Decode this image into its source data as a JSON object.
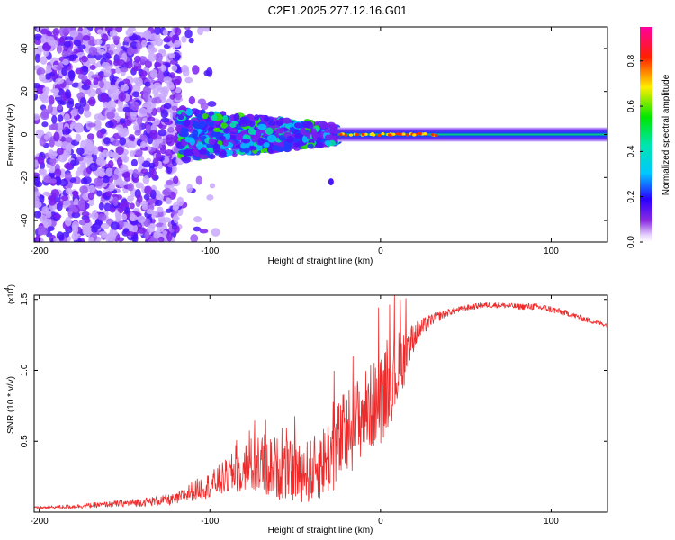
{
  "figure": {
    "title": "C2E1.2025.277.12.16.G01"
  },
  "chart_data": [
    {
      "type": "heatmap",
      "title": "C2E1.2025.277.12.16.G01",
      "xlabel": "Height of straight line (km)",
      "ylabel": "Frequency (Hz)",
      "xlim": [
        -203,
        133
      ],
      "ylim": [
        -50,
        50
      ],
      "x_ticks": [
        -200,
        -100,
        0,
        100
      ],
      "x_tick_labels": [
        "-200",
        "-100",
        "0",
        "100"
      ],
      "y_ticks": [
        -40,
        -20,
        0,
        20,
        40
      ],
      "y_tick_labels": [
        "-40",
        "-20",
        "0",
        "20",
        "40"
      ],
      "colorbar": {
        "label": "Normalized spectral amplitude",
        "range": [
          0,
          0.95
        ],
        "ticks": [
          0,
          0.2,
          0.4,
          0.6,
          0.8
        ],
        "tick_labels": [
          "0.0",
          "0.2",
          "0.4",
          "0.6",
          "0.8"
        ],
        "colormap": "rainbow (white-violet-blue-cyan-green-yellow-red-magenta)"
      },
      "description_series": [
        {
          "name": "scattered noise region",
          "x_range": [
            -203,
            -118
          ],
          "frequency_range": [
            -50,
            50
          ],
          "amplitude": 0.05
        },
        {
          "name": "converging band",
          "x_range": [
            -118,
            -25
          ],
          "frequency_range": [
            -10,
            12
          ],
          "amplitude": 0.2
        },
        {
          "name": "narrow carrier line",
          "x_range": [
            -25,
            133
          ],
          "frequency_center": 0,
          "amplitude_peak": 0.9
        }
      ]
    },
    {
      "type": "line",
      "xlabel": "Height of straight line (km)",
      "ylabel": "SNR (10 * v/v)",
      "yscale_label": "(x10",
      "yscale_exponent": "4",
      "xlim": [
        -203,
        133
      ],
      "ylim": [
        0,
        15300
      ],
      "x_ticks": [
        -200,
        -100,
        0,
        100
      ],
      "x_tick_labels": [
        "-200",
        "-100",
        "0",
        "100"
      ],
      "y_ticks": [
        5000,
        10000,
        15000
      ],
      "y_tick_labels": [
        "0.5",
        "1.0",
        "1.5"
      ],
      "color": "#ee2a2a",
      "series": [
        {
          "name": "SNR",
          "x": [
            -203,
            -180,
            -160,
            -140,
            -120,
            -110,
            -100,
            -90,
            -80,
            -70,
            -60,
            -50,
            -40,
            -30,
            -20,
            -10,
            0,
            10,
            20,
            30,
            40,
            50,
            60,
            70,
            80,
            90,
            100,
            110,
            120,
            133
          ],
          "y": [
            300,
            400,
            550,
            700,
            900,
            1500,
            1900,
            2500,
            3200,
            3400,
            3100,
            2800,
            2900,
            4000,
            5500,
            7000,
            8000,
            10000,
            12500,
            13600,
            14100,
            14400,
            14600,
            14600,
            14500,
            14500,
            14300,
            14000,
            13600,
            13200
          ],
          "spread": [
            100,
            150,
            200,
            300,
            400,
            700,
            900,
            1300,
            1800,
            2300,
            2200,
            2100,
            2300,
            2800,
            3300,
            3000,
            3200,
            2800,
            900,
            400,
            250,
            200,
            200,
            200,
            200,
            250,
            250,
            200,
            200,
            150
          ]
        }
      ]
    }
  ]
}
